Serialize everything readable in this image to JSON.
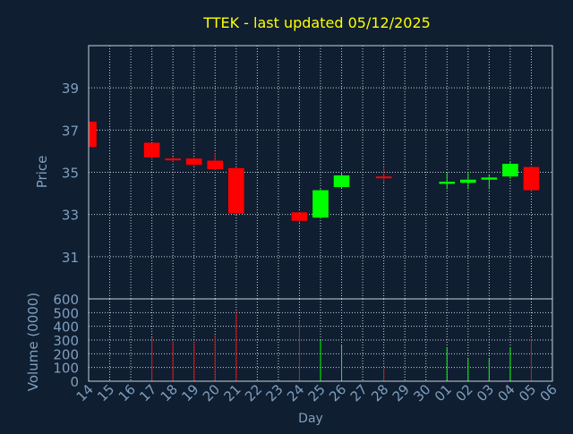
{
  "chart_data": {
    "type": "candlestick",
    "title": "TTEK - last updated 05/12/2025",
    "xlabel": "Day",
    "x_tick_labels": [
      "14",
      "15",
      "16",
      "17",
      "18",
      "19",
      "20",
      "21",
      "22",
      "23",
      "24",
      "25",
      "26",
      "27",
      "28",
      "29",
      "30",
      "01",
      "02",
      "03",
      "04",
      "05",
      "06"
    ],
    "price_panel": {
      "ylabel": "Price",
      "ylim": [
        29.0,
        41.0
      ],
      "yticks": [
        31,
        33,
        35,
        37,
        39
      ],
      "candles": [
        {
          "day": "14",
          "open": 37.4,
          "high": 37.4,
          "low": 36.2,
          "close": 36.2
        },
        {
          "day": "17",
          "open": 36.4,
          "high": 36.4,
          "low": 35.6,
          "close": 35.7
        },
        {
          "day": "18",
          "open": 35.65,
          "high": 35.75,
          "low": 35.5,
          "close": 35.6
        },
        {
          "day": "19",
          "open": 35.65,
          "high": 35.7,
          "low": 35.3,
          "close": 35.35
        },
        {
          "day": "20",
          "open": 35.55,
          "high": 35.9,
          "low": 35.1,
          "close": 35.15
        },
        {
          "day": "21",
          "open": 35.2,
          "high": 35.2,
          "low": 33.0,
          "close": 33.05
        },
        {
          "day": "24",
          "open": 33.1,
          "high": 33.1,
          "low": 32.6,
          "close": 32.7
        },
        {
          "day": "25",
          "open": 32.85,
          "high": 34.2,
          "low": 32.8,
          "close": 34.15
        },
        {
          "day": "26",
          "open": 34.3,
          "high": 35.0,
          "low": 34.25,
          "close": 34.85
        },
        {
          "day": "28",
          "open": 34.8,
          "high": 35.2,
          "low": 34.5,
          "close": 34.75
        },
        {
          "day": "01",
          "open": 34.45,
          "high": 35.0,
          "low": 34.2,
          "close": 34.55
        },
        {
          "day": "02",
          "open": 34.5,
          "high": 35.0,
          "low": 34.2,
          "close": 34.65
        },
        {
          "day": "03",
          "open": 34.65,
          "high": 34.85,
          "low": 34.2,
          "close": 34.75
        },
        {
          "day": "04",
          "open": 34.8,
          "high": 35.5,
          "low": 34.7,
          "close": 35.4
        },
        {
          "day": "05",
          "open": 35.25,
          "high": 35.3,
          "low": 34.1,
          "close": 34.15
        }
      ]
    },
    "volume_panel": {
      "ylabel": "Volume (0000)",
      "ylim": [
        0,
        600
      ],
      "yticks": [
        0,
        100,
        200,
        300,
        400,
        500,
        600
      ],
      "bars": [
        {
          "day": "17",
          "value": 320
        },
        {
          "day": "18",
          "value": 290
        },
        {
          "day": "19",
          "value": 290
        },
        {
          "day": "20",
          "value": 335
        },
        {
          "day": "21",
          "value": 510
        },
        {
          "day": "24",
          "value": 440
        },
        {
          "day": "25",
          "value": 300
        },
        {
          "day": "26",
          "value": 265
        },
        {
          "day": "28",
          "value": 95
        },
        {
          "day": "01",
          "value": 245
        },
        {
          "day": "02",
          "value": 165
        },
        {
          "day": "03",
          "value": 165
        },
        {
          "day": "04",
          "value": 245
        },
        {
          "day": "05",
          "value": 310
        }
      ]
    },
    "grid": true,
    "colors": {
      "background": "#0f1e30",
      "title": "#ffff00",
      "axis_text": "#7f9fbf",
      "grid": "#c8d2de",
      "up": "#00ff00",
      "down": "#ff0000"
    }
  }
}
